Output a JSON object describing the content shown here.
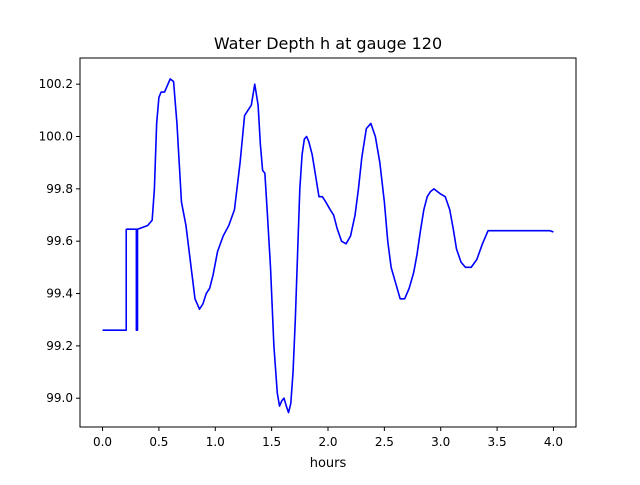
{
  "chart_data": {
    "type": "line",
    "title": "Water Depth h at gauge 120",
    "xlabel": "hours",
    "ylabel": "",
    "xlim": [
      -0.2,
      4.2
    ],
    "ylim": [
      98.89,
      100.3
    ],
    "grid": false,
    "x_ticks": [
      0.0,
      0.5,
      1.0,
      1.5,
      2.0,
      2.5,
      3.0,
      3.5,
      4.0
    ],
    "x_tick_labels": [
      "0.0",
      "0.5",
      "1.0",
      "1.5",
      "2.0",
      "2.5",
      "3.0",
      "3.5",
      "4.0"
    ],
    "y_ticks": [
      99.0,
      99.2,
      99.4,
      99.6,
      99.8,
      100.0,
      100.2
    ],
    "y_tick_labels": [
      "99.0",
      "99.2",
      "99.4",
      "99.6",
      "99.8",
      "100.0",
      "100.2"
    ],
    "series": [
      {
        "color": "#0000ff",
        "x": [
          0.0,
          0.21,
          0.21,
          0.22,
          0.3,
          0.3,
          0.31,
          0.31,
          0.32,
          0.4,
          0.44,
          0.46,
          0.48,
          0.5,
          0.52,
          0.55,
          0.58,
          0.6,
          0.63,
          0.66,
          0.68,
          0.7,
          0.74,
          0.78,
          0.82,
          0.86,
          0.89,
          0.92,
          0.95,
          0.98,
          1.02,
          1.07,
          1.12,
          1.17,
          1.22,
          1.26,
          1.29,
          1.32,
          1.35,
          1.38,
          1.4,
          1.42,
          1.44,
          1.46,
          1.49,
          1.52,
          1.55,
          1.57,
          1.59,
          1.61,
          1.63,
          1.65,
          1.67,
          1.69,
          1.71,
          1.73,
          1.75,
          1.77,
          1.79,
          1.81,
          1.83,
          1.86,
          1.89,
          1.92,
          1.95,
          1.98,
          2.02,
          2.05,
          2.08,
          2.12,
          2.16,
          2.2,
          2.24,
          2.27,
          2.3,
          2.34,
          2.38,
          2.42,
          2.46,
          2.5,
          2.53,
          2.56,
          2.6,
          2.64,
          2.68,
          2.72,
          2.76,
          2.79,
          2.82,
          2.85,
          2.88,
          2.91,
          2.94,
          2.97,
          3.0,
          3.04,
          3.08,
          3.11,
          3.14,
          3.18,
          3.22,
          3.27,
          3.32,
          3.37,
          3.42,
          3.46,
          3.5,
          3.54,
          3.58,
          3.62,
          3.66,
          3.7,
          3.74,
          3.78,
          3.82,
          3.86,
          3.9,
          3.94,
          3.97,
          4.0
        ],
        "values": [
          99.26,
          99.26,
          99.645,
          99.646,
          99.646,
          99.26,
          99.26,
          99.646,
          99.647,
          99.66,
          99.68,
          99.8,
          100.05,
          100.15,
          100.17,
          100.17,
          100.2,
          100.22,
          100.21,
          100.05,
          99.9,
          99.75,
          99.66,
          99.52,
          99.38,
          99.34,
          99.36,
          99.4,
          99.42,
          99.47,
          99.56,
          99.62,
          99.66,
          99.72,
          99.9,
          100.08,
          100.1,
          100.12,
          100.2,
          100.12,
          99.97,
          99.87,
          99.86,
          99.72,
          99.5,
          99.2,
          99.02,
          98.97,
          98.99,
          99.0,
          98.97,
          98.945,
          98.98,
          99.1,
          99.3,
          99.55,
          99.8,
          99.93,
          99.99,
          100.0,
          99.98,
          99.93,
          99.85,
          99.77,
          99.77,
          99.75,
          99.72,
          99.7,
          99.65,
          99.6,
          99.59,
          99.62,
          99.7,
          99.8,
          99.92,
          100.03,
          100.05,
          100.0,
          99.9,
          99.75,
          99.6,
          99.5,
          99.44,
          99.38,
          99.38,
          99.42,
          99.48,
          99.55,
          99.64,
          99.72,
          99.77,
          99.79,
          99.8,
          99.79,
          99.78,
          99.77,
          99.72,
          99.65,
          99.57,
          99.52,
          99.5,
          99.5,
          99.53,
          99.59,
          99.64,
          99.64,
          99.64,
          99.64,
          99.64,
          99.64,
          99.64,
          99.64,
          99.64,
          99.64,
          99.64,
          99.64,
          99.64,
          99.64,
          99.64,
          99.635
        ]
      }
    ]
  }
}
